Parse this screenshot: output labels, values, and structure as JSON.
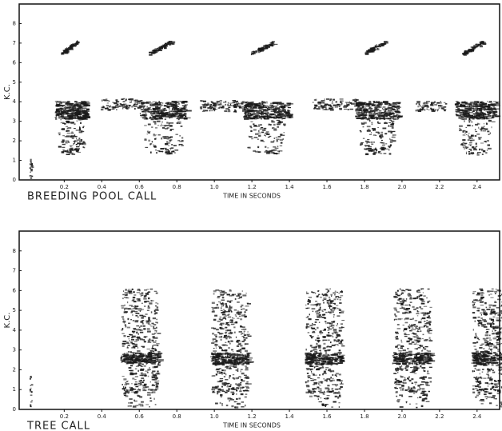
{
  "chart_data": [
    {
      "type": "spectrogram",
      "caption": "BREEDING POOL CALL",
      "x_label": "TIME IN SECONDS",
      "y_label": "K.C.",
      "xlim": [
        -0.04,
        2.52
      ],
      "xticks": [
        0.2,
        0.4,
        0.6,
        0.8,
        {
          "value": 1,
          "label": "1.0"
        },
        1.2,
        1.4,
        1.6,
        1.8,
        {
          "value": 2,
          "label": "2.0"
        },
        2.2,
        2.4
      ],
      "ylim": [
        0,
        9
      ],
      "yticks": [
        0,
        1,
        2,
        3,
        4,
        5,
        6,
        7,
        8
      ]
    },
    {
      "type": "spectrogram",
      "caption": "TREE CALL",
      "x_label": "TIME IN SECONDS",
      "y_label": "K.C.",
      "xlim": [
        -0.04,
        2.52
      ],
      "xticks": [
        0.2,
        0.4,
        0.6,
        0.8,
        {
          "value": 1,
          "label": "1.0"
        },
        1.2,
        1.4,
        1.6,
        1.8,
        {
          "value": 2,
          "label": "2.0"
        },
        2.2,
        2.4
      ],
      "ylim": [
        0,
        9
      ],
      "yticks": [
        0,
        1,
        2,
        3,
        4,
        5,
        6,
        7,
        8
      ]
    }
  ]
}
